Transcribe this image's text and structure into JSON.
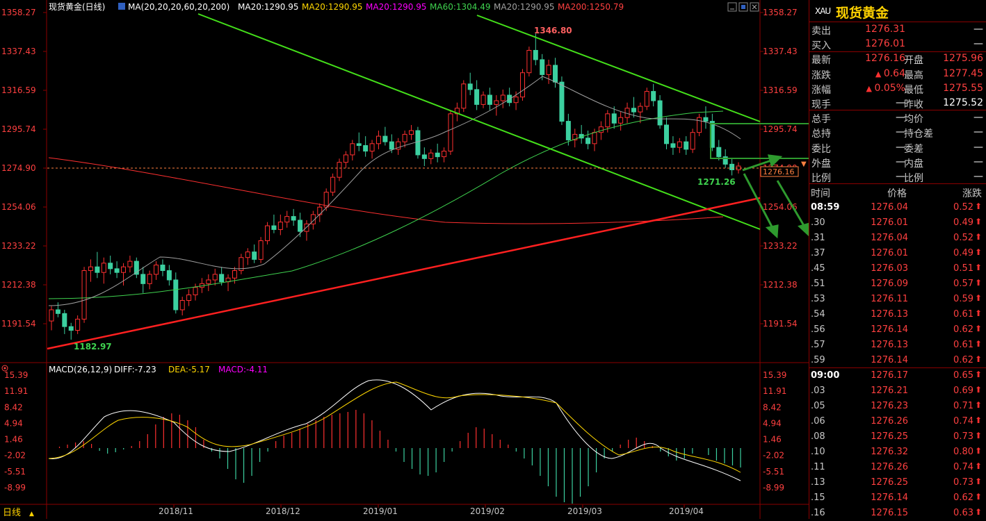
{
  "legend": {
    "symbol": "现货黄金",
    "period": "(日线)",
    "ma_params": "MA(20,20,20,60,20,200)",
    "ma1": "MA20:1290.95",
    "ma2": "MA20:1290.95",
    "ma3": "MA20:1290.95",
    "ma4": "MA60:1304.49",
    "ma5": "MA20:1290.95",
    "ma6": "MA200:1250.79",
    "colors": {
      "ma1": "#ffffff",
      "ma2": "#ffd700",
      "ma3": "#ff00ff",
      "ma4": "#3fd34f",
      "ma5": "#a0a0a0",
      "ma6": "#ff4040"
    }
  },
  "price_axis": {
    "ticks": [
      1358.27,
      1337.43,
      1316.59,
      1295.74,
      1274.9,
      1254.06,
      1233.22,
      1212.38,
      1191.54
    ],
    "tick_labels": [
      "1358.27",
      "1337.43",
      "1316.59",
      "1295.74",
      "1274.90",
      "1254.06",
      "1233.22",
      "1212.38",
      "1191.54"
    ]
  },
  "annotations": {
    "high": "1346.80",
    "low": "1182.97",
    "recent_low": "1271.26",
    "current": "1276.16"
  },
  "macd": {
    "label": "MACD(26,12,9)",
    "diff": "DIFF:-7.23",
    "dea": "DEA:-5.17",
    "macd": "MACD:-4.11",
    "ticks": [
      "15.39",
      "11.91",
      "8.42",
      "4.94",
      "1.46",
      "-2.02",
      "-5.51",
      "-8.99"
    ]
  },
  "x_axis": {
    "months": [
      "2018/11",
      "2018/12",
      "2019/01",
      "2019/02",
      "2019/03",
      "2019/04"
    ],
    "period_button": "日线"
  },
  "chart_data": {
    "type": "candlestick",
    "candles": [
      [
        1193,
        1201,
        1188,
        1199
      ],
      [
        1199,
        1203,
        1195,
        1197
      ],
      [
        1197,
        1199,
        1186,
        1190
      ],
      [
        1190,
        1192,
        1183,
        1188
      ],
      [
        1188,
        1196,
        1186,
        1194
      ],
      [
        1194,
        1222,
        1192,
        1220
      ],
      [
        1220,
        1226,
        1214,
        1222
      ],
      [
        1222,
        1230,
        1216,
        1219
      ],
      [
        1219,
        1227,
        1213,
        1224
      ],
      [
        1224,
        1228,
        1218,
        1221
      ],
      [
        1221,
        1225,
        1216,
        1219
      ],
      [
        1219,
        1224,
        1212,
        1222
      ],
      [
        1222,
        1228,
        1219,
        1225
      ],
      [
        1225,
        1227,
        1216,
        1218
      ],
      [
        1218,
        1222,
        1208,
        1213
      ],
      [
        1213,
        1220,
        1210,
        1218
      ],
      [
        1218,
        1225,
        1215,
        1223
      ],
      [
        1223,
        1226,
        1217,
        1220
      ],
      [
        1220,
        1223,
        1212,
        1215
      ],
      [
        1215,
        1219,
        1197,
        1199
      ],
      [
        1199,
        1206,
        1196,
        1204
      ],
      [
        1204,
        1210,
        1201,
        1207
      ],
      [
        1207,
        1213,
        1204,
        1211
      ],
      [
        1211,
        1216,
        1208,
        1213
      ],
      [
        1213,
        1218,
        1209,
        1215
      ],
      [
        1215,
        1221,
        1212,
        1218
      ],
      [
        1218,
        1222,
        1212,
        1214
      ],
      [
        1214,
        1218,
        1209,
        1216
      ],
      [
        1216,
        1222,
        1213,
        1220
      ],
      [
        1220,
        1229,
        1218,
        1227
      ],
      [
        1227,
        1232,
        1223,
        1230
      ],
      [
        1230,
        1234,
        1224,
        1226
      ],
      [
        1226,
        1238,
        1224,
        1236
      ],
      [
        1236,
        1246,
        1234,
        1244
      ],
      [
        1244,
        1250,
        1240,
        1242
      ],
      [
        1242,
        1250,
        1239,
        1246
      ],
      [
        1246,
        1252,
        1243,
        1249
      ],
      [
        1249,
        1253,
        1244,
        1247
      ],
      [
        1247,
        1251,
        1238,
        1241
      ],
      [
        1241,
        1247,
        1236,
        1245
      ],
      [
        1245,
        1252,
        1242,
        1250
      ],
      [
        1250,
        1256,
        1246,
        1254
      ],
      [
        1254,
        1264,
        1252,
        1262
      ],
      [
        1262,
        1272,
        1260,
        1270
      ],
      [
        1270,
        1280,
        1268,
        1278
      ],
      [
        1278,
        1284,
        1275,
        1282
      ],
      [
        1282,
        1290,
        1279,
        1288
      ],
      [
        1288,
        1294,
        1284,
        1287
      ],
      [
        1287,
        1292,
        1281,
        1284
      ],
      [
        1284,
        1290,
        1280,
        1288
      ],
      [
        1288,
        1295,
        1285,
        1292
      ],
      [
        1292,
        1297,
        1287,
        1289
      ],
      [
        1289,
        1293,
        1283,
        1285
      ],
      [
        1285,
        1291,
        1282,
        1289
      ],
      [
        1289,
        1295,
        1286,
        1293
      ],
      [
        1293,
        1298,
        1290,
        1295
      ],
      [
        1295,
        1297,
        1280,
        1282
      ],
      [
        1282,
        1286,
        1276,
        1280
      ],
      [
        1280,
        1285,
        1277,
        1283
      ],
      [
        1283,
        1288,
        1278,
        1281
      ],
      [
        1281,
        1286,
        1278,
        1284
      ],
      [
        1284,
        1306,
        1282,
        1304
      ],
      [
        1304,
        1310,
        1300,
        1307
      ],
      [
        1307,
        1322,
        1305,
        1320
      ],
      [
        1320,
        1326,
        1314,
        1317
      ],
      [
        1317,
        1322,
        1306,
        1309
      ],
      [
        1309,
        1316,
        1307,
        1314
      ],
      [
        1314,
        1318,
        1306,
        1309
      ],
      [
        1309,
        1314,
        1303,
        1311
      ],
      [
        1311,
        1317,
        1307,
        1314
      ],
      [
        1314,
        1318,
        1308,
        1310
      ],
      [
        1310,
        1316,
        1306,
        1313
      ],
      [
        1313,
        1328,
        1311,
        1326
      ],
      [
        1326,
        1340,
        1324,
        1338
      ],
      [
        1338,
        1347,
        1330,
        1333
      ],
      [
        1333,
        1336,
        1322,
        1325
      ],
      [
        1325,
        1333,
        1320,
        1330
      ],
      [
        1330,
        1334,
        1318,
        1321
      ],
      [
        1321,
        1324,
        1298,
        1300
      ],
      [
        1300,
        1304,
        1287,
        1290
      ],
      [
        1290,
        1296,
        1286,
        1293
      ],
      [
        1293,
        1298,
        1288,
        1291
      ],
      [
        1291,
        1295,
        1285,
        1288
      ],
      [
        1288,
        1296,
        1284,
        1294
      ],
      [
        1294,
        1300,
        1290,
        1297
      ],
      [
        1297,
        1306,
        1294,
        1304
      ],
      [
        1304,
        1308,
        1296,
        1299
      ],
      [
        1299,
        1305,
        1295,
        1302
      ],
      [
        1302,
        1310,
        1299,
        1307
      ],
      [
        1307,
        1313,
        1302,
        1305
      ],
      [
        1305,
        1310,
        1299,
        1308
      ],
      [
        1308,
        1318,
        1306,
        1316
      ],
      [
        1316,
        1320,
        1308,
        1311
      ],
      [
        1311,
        1314,
        1296,
        1298
      ],
      [
        1298,
        1302,
        1285,
        1288
      ],
      [
        1288,
        1292,
        1282,
        1286
      ],
      [
        1286,
        1291,
        1283,
        1289
      ],
      [
        1289,
        1292,
        1282,
        1285
      ],
      [
        1285,
        1296,
        1283,
        1294
      ],
      [
        1294,
        1304,
        1292,
        1302
      ],
      [
        1302,
        1308,
        1296,
        1300
      ],
      [
        1300,
        1304,
        1284,
        1286
      ],
      [
        1286,
        1290,
        1279,
        1281
      ],
      [
        1281,
        1285,
        1275,
        1277
      ],
      [
        1277,
        1280,
        1271,
        1274
      ],
      [
        1274,
        1278,
        1272,
        1276
      ]
    ]
  },
  "quote": {
    "code": "XAU",
    "name": "现货黄金",
    "rows": [
      {
        "l1": "卖出",
        "v1": "1276.31",
        "l2": "",
        "v2": "—"
      },
      {
        "l1": "买入",
        "v1": "1276.01",
        "l2": "",
        "v2": "—"
      },
      {
        "l1": "最新",
        "v1": "1276.16",
        "l2": "开盘",
        "v2": "1275.96"
      },
      {
        "l1": "涨跌",
        "v1": "0.64",
        "l2": "最高",
        "v2": "1277.45",
        "v1_arrow": "▲"
      },
      {
        "l1": "涨幅",
        "v1": "0.05%",
        "l2": "最低",
        "v2": "1275.55",
        "v1_arrow": "▲"
      },
      {
        "l1": "现手",
        "v1": "—",
        "l2": "昨收",
        "v2": "1275.52"
      },
      {
        "l1": "总手",
        "v1": "—",
        "l2": "均价",
        "v2": "—"
      },
      {
        "l1": "总持",
        "v1": "—",
        "l2": "持仓差",
        "v2": "—"
      },
      {
        "l1": "委比",
        "v1": "—",
        "l2": "委差",
        "v2": "—"
      },
      {
        "l1": "外盘",
        "v1": "—",
        "l2": "内盘",
        "v2": "—"
      },
      {
        "l1": "比例",
        "v1": "—",
        "l2": "比例",
        "v2": "—"
      }
    ]
  },
  "ticks": {
    "head": {
      "time": "时间",
      "price": "价格",
      "change": "涨跌"
    },
    "rows": [
      {
        "t": "08:59",
        "p": "1276.04",
        "c": "0.52",
        "major": true
      },
      {
        "t": ".30",
        "p": "1276.01",
        "c": "0.49"
      },
      {
        "t": ".31",
        "p": "1276.04",
        "c": "0.52"
      },
      {
        "t": ".37",
        "p": "1276.01",
        "c": "0.49"
      },
      {
        "t": ".45",
        "p": "1276.03",
        "c": "0.51"
      },
      {
        "t": ".51",
        "p": "1276.09",
        "c": "0.57"
      },
      {
        "t": ".53",
        "p": "1276.11",
        "c": "0.59"
      },
      {
        "t": ".54",
        "p": "1276.13",
        "c": "0.61"
      },
      {
        "t": ".56",
        "p": "1276.14",
        "c": "0.62"
      },
      {
        "t": ".57",
        "p": "1276.13",
        "c": "0.61"
      },
      {
        "t": ".59",
        "p": "1276.14",
        "c": "0.62"
      },
      {
        "t": "09:00",
        "p": "1276.17",
        "c": "0.65",
        "major": true
      },
      {
        "t": ".03",
        "p": "1276.21",
        "c": "0.69"
      },
      {
        "t": ".05",
        "p": "1276.23",
        "c": "0.71"
      },
      {
        "t": ".06",
        "p": "1276.26",
        "c": "0.74"
      },
      {
        "t": ".08",
        "p": "1276.25",
        "c": "0.73"
      },
      {
        "t": ".10",
        "p": "1276.32",
        "c": "0.80"
      },
      {
        "t": ".11",
        "p": "1276.26",
        "c": "0.74"
      },
      {
        "t": ".13",
        "p": "1276.25",
        "c": "0.73"
      },
      {
        "t": ".15",
        "p": "1276.14",
        "c": "0.62"
      },
      {
        "t": ".16",
        "p": "1276.15",
        "c": "0.63"
      }
    ]
  }
}
